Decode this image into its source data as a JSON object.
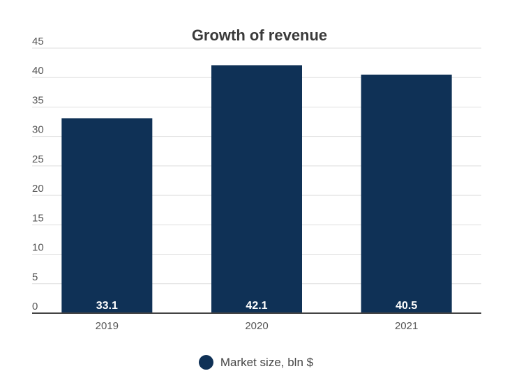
{
  "chart_data": {
    "type": "bar",
    "title": "Growth of revenue",
    "categories": [
      "2019",
      "2020",
      "2021"
    ],
    "series": [
      {
        "name": "Market size, bln $",
        "values": [
          33.1,
          42.1,
          40.5
        ]
      }
    ],
    "ylim": [
      0,
      45
    ],
    "yticks": [
      0,
      5,
      10,
      15,
      20,
      25,
      30,
      35,
      40,
      45
    ],
    "xlabel": "",
    "ylabel": "",
    "grid": true,
    "legend_position": "bottom-center",
    "data_labels": [
      "33.1",
      "42.1",
      "40.5"
    ]
  },
  "colors": {
    "bar": "#0f3156",
    "grid": "#dedede",
    "baseline": "#444444",
    "tick_text": "#555555",
    "data_label": "#ffffff"
  }
}
